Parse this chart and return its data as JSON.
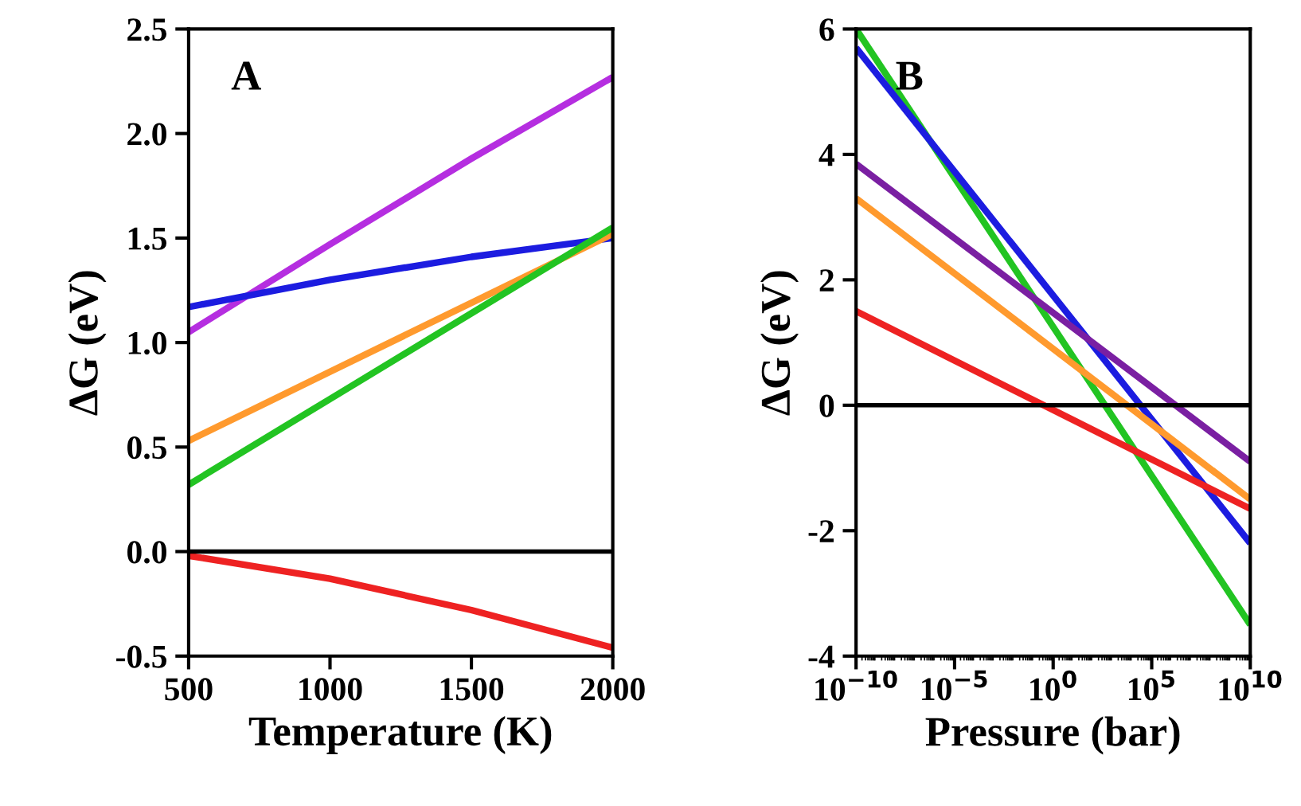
{
  "chart_data": [
    {
      "type": "line",
      "annotations": [
        "A"
      ],
      "xlabel": "Temperature (K)",
      "ylabel": "ΔG (eV)",
      "xlim": [
        500,
        2000
      ],
      "xticks": [
        500,
        1000,
        1500,
        2000
      ],
      "ylim": [
        -0.5,
        2.5
      ],
      "yticks": [
        {
          "value": -0.5,
          "label": "-0.5"
        },
        {
          "value": 0,
          "label": "0.0"
        },
        0.5,
        {
          "value": 1,
          "label": "1.0"
        },
        1.5,
        {
          "value": 2,
          "label": "2.0"
        },
        2.5
      ],
      "grid": false,
      "x": [
        500,
        1000,
        1500,
        2000
      ],
      "series": [
        {
          "color": "#b52ee0",
          "values": [
            1.05,
            1.47,
            1.88,
            2.27
          ]
        },
        {
          "color": "#1c1ce0",
          "values": [
            1.17,
            1.3,
            1.41,
            1.5
          ]
        },
        {
          "color": "#ff9a2e",
          "values": [
            0.53,
            0.86,
            1.19,
            1.52
          ]
        },
        {
          "color": "#22c422",
          "values": [
            0.32,
            0.73,
            1.14,
            1.55
          ]
        },
        {
          "color": "#ee2222",
          "values": [
            -0.02,
            -0.13,
            -0.28,
            -0.46
          ]
        }
      ],
      "ref_lines": [
        {
          "axis": "y",
          "value": 0,
          "color": "#000000"
        }
      ]
    },
    {
      "type": "line",
      "annotations": [
        "B"
      ],
      "xlabel": "Pressure (bar)",
      "ylabel": "ΔG (eV)",
      "log": "x",
      "xlim": [
        1e-10,
        10000000000.0
      ],
      "xticks": [
        {
          "value": 1e-10,
          "label": "10$^{−10}$"
        },
        {
          "value": 1e-05,
          "label": "10$^{−5}$"
        },
        {
          "value": 1,
          "label": "10$^{0}$"
        },
        {
          "value": 100000.0,
          "label": "10$^{5}$"
        },
        {
          "value": 10000000000.0,
          "label": "10$^{10}$"
        }
      ],
      "ylim": [
        -4,
        6
      ],
      "yticks": [
        -4,
        -2,
        0,
        2,
        4,
        6
      ],
      "grid": false,
      "x": [
        1e-10,
        10000000000.0
      ],
      "series": [
        {
          "color": "#22c422",
          "values": [
            6.0,
            -3.5
          ]
        },
        {
          "color": "#1c1ce0",
          "values": [
            5.7,
            -2.2
          ]
        },
        {
          "color": "#7a1fa2",
          "values": [
            3.85,
            -0.9
          ]
        },
        {
          "color": "#ff9a2e",
          "values": [
            3.3,
            -1.5
          ]
        },
        {
          "color": "#ee2222",
          "values": [
            1.5,
            -1.65
          ]
        }
      ],
      "ref_lines": [
        {
          "axis": "y",
          "value": 0,
          "color": "#000000"
        }
      ]
    }
  ]
}
